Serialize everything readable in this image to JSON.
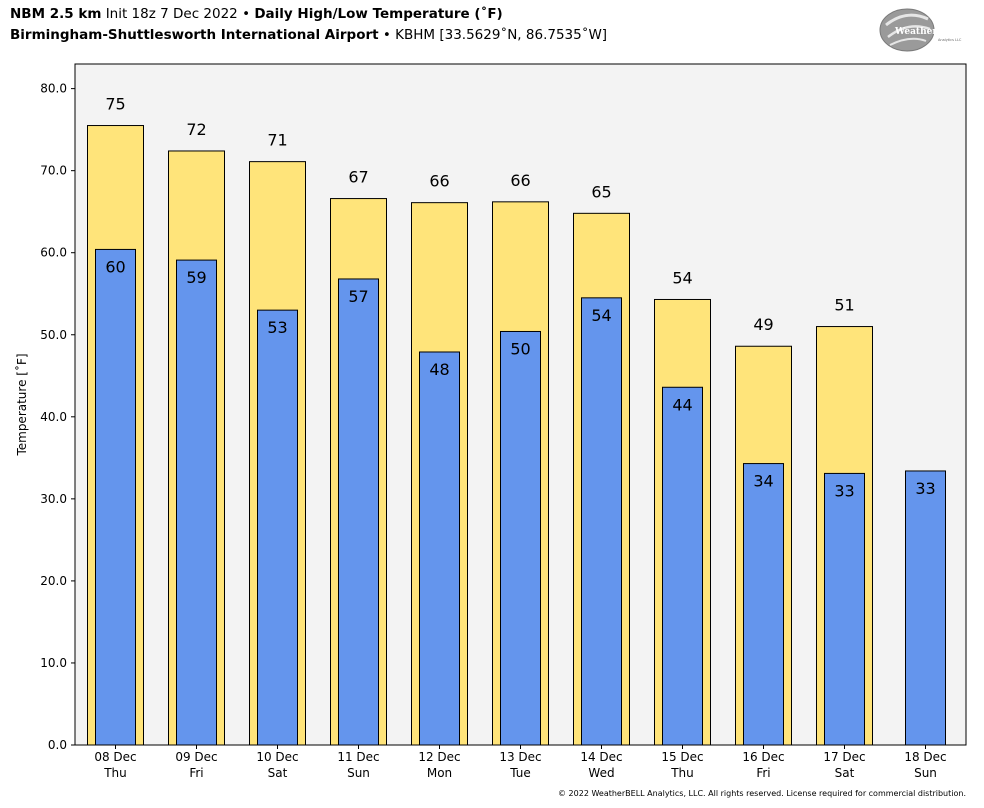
{
  "header": {
    "model": "NBM 2.5 km",
    "init": "Init 18z 7 Dec 2022",
    "sep": "•",
    "product": "Daily High/Low Temperature (˚F)",
    "station_name": "Birmingham-Shuttlesworth International Airport",
    "station_info": "KBHM [33.5629˚N, 86.7535˚W]"
  },
  "logo": {
    "text": "WeatherBELL",
    "sub": "Analytics LLC",
    "icon": "weatherbell-swirl-logo"
  },
  "footer": {
    "copyright": "© 2022 WeatherBELL Analytics, LLC. All rights reserved. License required for commercial distribution."
  },
  "colors": {
    "high": "#FFE47A",
    "low": "#6495ED",
    "plot_bg": "#F3F3F3"
  },
  "chart_data": {
    "type": "bar",
    "ylabel": "Temperature [˚F]",
    "ylim": [
      0,
      83
    ],
    "yticks": [
      "0.0",
      "10.0",
      "20.0",
      "30.0",
      "40.0",
      "50.0",
      "60.0",
      "70.0",
      "80.0"
    ],
    "grid": false,
    "categories": [
      [
        "08 Dec",
        "Thu"
      ],
      [
        "09 Dec",
        "Fri"
      ],
      [
        "10 Dec",
        "Sat"
      ],
      [
        "11 Dec",
        "Sun"
      ],
      [
        "12 Dec",
        "Mon"
      ],
      [
        "13 Dec",
        "Tue"
      ],
      [
        "14 Dec",
        "Wed"
      ],
      [
        "15 Dec",
        "Thu"
      ],
      [
        "16 Dec",
        "Fri"
      ],
      [
        "17 Dec",
        "Sat"
      ],
      [
        "18 Dec",
        "Sun"
      ]
    ],
    "series": [
      {
        "values": [
          75.5,
          72.4,
          71.1,
          66.6,
          66.1,
          66.2,
          64.8,
          54.3,
          48.6,
          51.0,
          null
        ],
        "labels": [
          "75",
          "72",
          "71",
          "67",
          "66",
          "66",
          "65",
          "54",
          "49",
          "51",
          ""
        ]
      },
      {
        "values": [
          60.4,
          59.1,
          53.0,
          56.8,
          47.9,
          50.4,
          54.5,
          43.6,
          34.3,
          33.1,
          33.4
        ],
        "labels": [
          "60",
          "59",
          "53",
          "57",
          "48",
          "50",
          "54",
          "44",
          "34",
          "33",
          "33"
        ]
      }
    ]
  }
}
